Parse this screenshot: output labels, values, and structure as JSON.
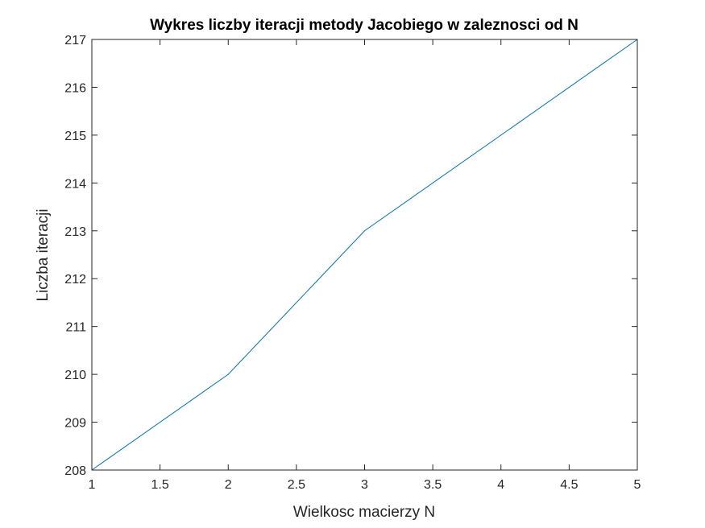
{
  "chart_data": {
    "type": "line",
    "title": "Wykres liczby iteracji metody Jacobiego w zaleznosci od N",
    "xlabel": "Wielkosc macierzy N",
    "ylabel": "Liczba iteracji",
    "x": [
      1,
      2,
      3,
      4,
      5
    ],
    "series": [
      {
        "values": [
          208,
          210,
          213,
          215,
          217
        ],
        "color": "#0072BD"
      }
    ],
    "xlim": [
      1,
      5
    ],
    "ylim": [
      208,
      217
    ],
    "xticks": [
      1,
      1.5,
      2,
      2.5,
      3,
      3.5,
      4,
      4.5,
      5
    ],
    "xtick_labels": [
      "1",
      "1.5",
      "2",
      "2.5",
      "3",
      "3.5",
      "4",
      "4.5",
      "5"
    ],
    "yticks": [
      208,
      209,
      210,
      211,
      212,
      213,
      214,
      215,
      216,
      217
    ],
    "ytick_labels": [
      "208",
      "209",
      "210",
      "211",
      "212",
      "213",
      "214",
      "215",
      "216",
      "217"
    ],
    "grid": false,
    "legend": "none"
  }
}
